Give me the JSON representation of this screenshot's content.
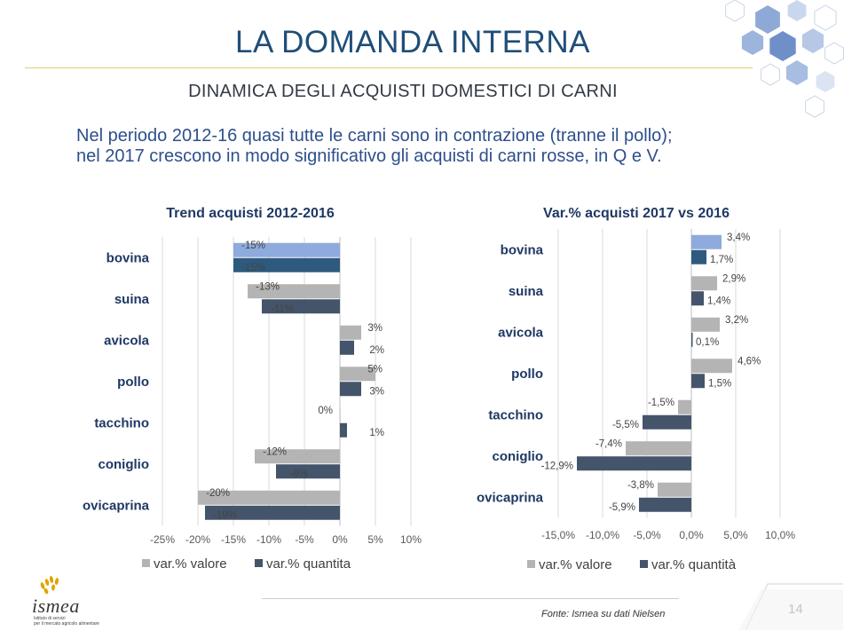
{
  "slide": {
    "title": "LA DOMANDA INTERNA",
    "subtitle": "DINAMICA DEGLI ACQUISTI DOMESTICI DI CARNI",
    "summary_line1": "Nel periodo 2012-16 quasi tutte le carni sono in contrazione (tranne il pollo);",
    "summary_line2": "nel 2017 crescono in modo significativo gli acquisti di carni rosse, in Q e V.",
    "source": "Fonte: Ismea su dati Nielsen",
    "page_number": "14"
  },
  "logo": {
    "name": "ismea",
    "tagline1": "Istituto di servizi",
    "tagline2": "per il mercato agricolo alimentare"
  },
  "colors": {
    "title": "#1f4e79",
    "valore": "#b4b4b4",
    "quantita": "#44546a",
    "bovina_valore": "#8faadc",
    "bovina_quantita": "#2e5a7f"
  },
  "chart_data": [
    {
      "type": "bar",
      "orientation": "horizontal",
      "title": "Trend acquisti 2012-2016",
      "categories": [
        "bovina",
        "suina",
        "avicola",
        "pollo",
        "tacchino",
        "coniglio",
        "ovicaprina"
      ],
      "series": [
        {
          "name": "var.% valore",
          "values": [
            -15,
            -13,
            3,
            5,
            0,
            -12,
            -20
          ],
          "labels": [
            "-15%",
            "-13%",
            "3%",
            "5%",
            "0%",
            "-12%",
            "-20%"
          ]
        },
        {
          "name": "var.% quantita",
          "values": [
            -15,
            -11,
            2,
            3,
            1,
            -9,
            -19
          ],
          "labels": [
            "-15%",
            "-11%",
            "2%",
            "3%",
            "1%",
            "-9%",
            "-19%"
          ]
        }
      ],
      "xlim": [
        -25,
        10
      ],
      "xticks": [
        -25,
        -20,
        -15,
        -10,
        -5,
        0,
        5,
        10
      ],
      "xtick_labels": [
        "-25%",
        "-20%",
        "-15%",
        "-10%",
        "-5%",
        "0%",
        "5%",
        "10%"
      ],
      "grid": true,
      "legend": "bottom",
      "highlight": "bovina"
    },
    {
      "type": "bar",
      "orientation": "horizontal",
      "title": "Var.% acquisti 2017 vs 2016",
      "categories": [
        "bovina",
        "suina",
        "avicola",
        "pollo",
        "tacchino",
        "coniglio",
        "ovicaprina"
      ],
      "series": [
        {
          "name": "var.%  valore",
          "values": [
            3.4,
            2.9,
            3.2,
            4.6,
            -1.5,
            -7.4,
            -3.8
          ],
          "labels": [
            "3,4%",
            "2,9%",
            "3,2%",
            "4,6%",
            "-1,5%",
            "-7,4%",
            "-3,8%"
          ]
        },
        {
          "name": "var.% quantità",
          "values": [
            1.7,
            1.4,
            0.1,
            1.5,
            -5.5,
            -12.9,
            -5.9
          ],
          "labels": [
            "1,7%",
            "1,4%",
            "0,1%",
            "1,5%",
            "-5,5%",
            "-12,9%",
            "-5,9%"
          ]
        }
      ],
      "xlim": [
        -15,
        10
      ],
      "xticks": [
        -15,
        -10,
        -5,
        0,
        5,
        10
      ],
      "xtick_labels": [
        "-15,0%",
        "-10,0%",
        "-5,0%",
        "0,0%",
        "5,0%",
        "10,0%"
      ],
      "grid": true,
      "legend": "bottom",
      "highlight": "bovina"
    }
  ]
}
